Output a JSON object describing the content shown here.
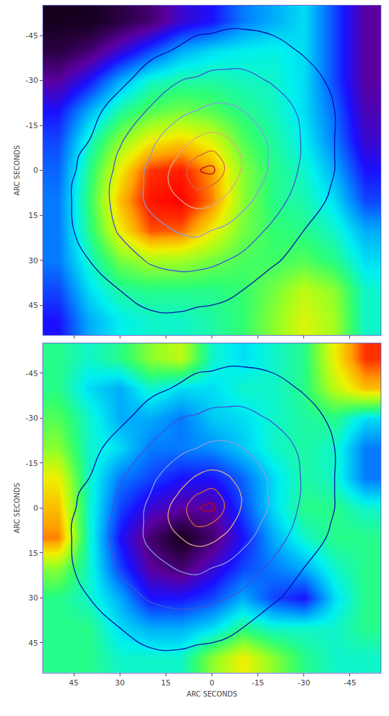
{
  "chart_data": {
    "type": "heatmap",
    "grid": false,
    "xlim": [
      55,
      -55
    ],
    "ylim": [
      55,
      -55
    ],
    "xticks": [
      45,
      30,
      15,
      0,
      -15,
      -30,
      -45
    ],
    "yticks": [
      -45,
      -30,
      -15,
      0,
      15,
      30,
      45
    ],
    "zlim": [
      0,
      10
    ],
    "x": [
      -50,
      -40,
      -30,
      -20,
      -10,
      0,
      10,
      20,
      30,
      40,
      50
    ],
    "y": [
      -50,
      -40,
      -30,
      -20,
      -10,
      0,
      10,
      20,
      30,
      40,
      50
    ],
    "contours": {
      "color": "#ffffff",
      "start": 1,
      "end": 6,
      "size": 1,
      "x": [
        -50,
        -40,
        -30,
        -20,
        -10,
        -5,
        0,
        5,
        10,
        20,
        30,
        40,
        50
      ],
      "y": [
        -50,
        -40,
        -30,
        -20,
        -10,
        -5,
        0,
        5,
        10,
        20,
        30,
        40,
        50
      ],
      "z": [
        [
          0,
          0.3,
          0.5,
          0.7,
          0.8,
          0.8,
          0.7,
          0.7,
          0.6,
          0.3,
          0,
          0,
          0
        ],
        [
          0.2,
          0.6,
          0.9,
          1.3,
          1.5,
          1.5,
          1.4,
          1.3,
          1.1,
          0.8,
          0.4,
          0,
          0
        ],
        [
          0.4,
          0.8,
          1.4,
          1.9,
          2.3,
          2.3,
          2.3,
          2.1,
          2.0,
          1.4,
          0.8,
          0.4,
          0
        ],
        [
          0.5,
          1.0,
          1.8,
          2.5,
          3.0,
          3.2,
          3.2,
          3.0,
          2.8,
          2.1,
          1.4,
          0.7,
          0.2
        ],
        [
          0.5,
          1.0,
          1.9,
          2.8,
          3.7,
          4.1,
          4.3,
          4.1,
          3.7,
          2.8,
          1.9,
          1.0,
          0.5
        ],
        [
          0.5,
          1.0,
          1.9,
          2.8,
          3.9,
          4.6,
          5.3,
          4.9,
          4.1,
          3.0,
          2.1,
          1.2,
          0.6
        ],
        [
          0.4,
          1.0,
          1.8,
          2.8,
          3.9,
          4.7,
          6.3,
          5.9,
          4.5,
          3.2,
          2.2,
          1.3,
          0.6
        ],
        [
          0.3,
          0.9,
          1.7,
          2.6,
          3.6,
          4.3,
          5.0,
          5.2,
          4.5,
          3.2,
          2.3,
          1.4,
          0.7
        ],
        [
          0.2,
          0.8,
          1.5,
          2.4,
          3.3,
          3.8,
          4.2,
          4.3,
          4.0,
          3.2,
          2.3,
          1.4,
          0.7
        ],
        [
          0,
          0.5,
          1.0,
          1.8,
          2.5,
          2.8,
          3.0,
          3.2,
          3.1,
          2.7,
          2.1,
          1.3,
          0.7
        ],
        [
          0,
          0.2,
          0.7,
          1.1,
          1.8,
          2.0,
          2.2,
          2.3,
          2.3,
          2.1,
          1.6,
          1.0,
          0.6
        ],
        [
          0,
          0,
          0.3,
          0.6,
          1.0,
          1.2,
          1.3,
          1.4,
          1.5,
          1.4,
          1.0,
          0.7,
          0.4
        ],
        [
          0,
          0,
          0,
          0.2,
          0.5,
          0.6,
          0.7,
          0.7,
          0.8,
          0.8,
          0.6,
          0.4,
          0.1
        ]
      ]
    },
    "panels": [
      {
        "ylabel": "ARC SECONDS",
        "tick_labels": "y",
        "z": [
          [
            2,
            3.5,
            5,
            4.5,
            4,
            3,
            2.5,
            1.5,
            1,
            0.5,
            0.5
          ],
          [
            2,
            3.5,
            5,
            5.3,
            5.2,
            5,
            4.5,
            3.5,
            2.5,
            1.5,
            1
          ],
          [
            2,
            3.5,
            5,
            5.5,
            5.6,
            5.8,
            5.8,
            5.5,
            4.5,
            3,
            2
          ],
          [
            2.2,
            3.8,
            5,
            5.6,
            6,
            6.5,
            6.8,
            6.5,
            5.8,
            4.5,
            3
          ],
          [
            2.5,
            4,
            5.2,
            5.8,
            6.5,
            7.8,
            8.3,
            8,
            7,
            5.5,
            3.5
          ],
          [
            3,
            4.5,
            5.5,
            6,
            7,
            8.8,
            9.7,
            9.5,
            8,
            6,
            3.8
          ],
          [
            3.5,
            5,
            5.7,
            6,
            7,
            9,
            10,
            9.8,
            8.5,
            6.2,
            4
          ],
          [
            4.5,
            5.5,
            6,
            6.2,
            6.8,
            8,
            9.2,
            9.3,
            8,
            6,
            4
          ],
          [
            5,
            6,
            6.5,
            6.3,
            6.4,
            6.8,
            7.2,
            7.3,
            6.8,
            5.5,
            4
          ],
          [
            5.5,
            7,
            7.5,
            6.8,
            6.2,
            6,
            6,
            6,
            5.8,
            5,
            3.5
          ],
          [
            5.5,
            7.2,
            7.8,
            7,
            6.2,
            5.8,
            5.5,
            5.5,
            5.2,
            4.5,
            3
          ]
        ]
      },
      {
        "ylabel": "ARC SECONDS",
        "xlabel": "ARC SECONDS",
        "z": [
          [
            9.5,
            8,
            6,
            5.5,
            5,
            5.5,
            7.5,
            7,
            6,
            5.5,
            6
          ],
          [
            8.5,
            7.5,
            6,
            5.5,
            5.5,
            5,
            5,
            5.5,
            4.5,
            5,
            6
          ],
          [
            5,
            6,
            5.8,
            5.5,
            5,
            4.8,
            4,
            4.5,
            4.5,
            5.5,
            6.5
          ],
          [
            4,
            5.5,
            5.8,
            5.5,
            4.8,
            4.2,
            4,
            4,
            5,
            5.5,
            7
          ],
          [
            4,
            5.5,
            5.8,
            5,
            3.8,
            3,
            3,
            3.5,
            4,
            5.5,
            8
          ],
          [
            5.5,
            6,
            6,
            5,
            3.5,
            2,
            2,
            2.5,
            3.5,
            5.5,
            8.5
          ],
          [
            6,
            6,
            5.5,
            4.5,
            3,
            1.5,
            0.5,
            1.5,
            3,
            5.5,
            9
          ],
          [
            6,
            5.5,
            4.5,
            4,
            3.5,
            2.5,
            1.5,
            2,
            3.5,
            5.5,
            7
          ],
          [
            6,
            5,
            3,
            3.5,
            4.5,
            3.5,
            3,
            3,
            4.5,
            5.5,
            6
          ],
          [
            6,
            5.5,
            5.5,
            5.5,
            6,
            5,
            4.5,
            4.5,
            5,
            6,
            6
          ],
          [
            5.5,
            5.5,
            6,
            7,
            8,
            7,
            5.5,
            5.5,
            5.5,
            6,
            6
          ]
        ]
      }
    ]
  }
}
